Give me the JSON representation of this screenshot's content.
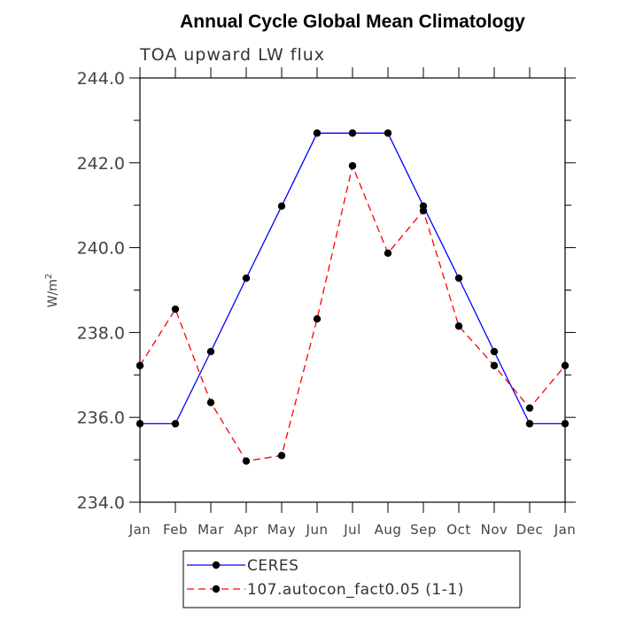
{
  "chart_data": {
    "type": "line",
    "title": "Annual Cycle Global Mean Climatology",
    "subtitle": "TOA upward LW flux",
    "ylabel_base": "W/m",
    "ylabel_sup": "2",
    "categories": [
      "Jan",
      "Feb",
      "Mar",
      "Apr",
      "May",
      "Jun",
      "Jul",
      "Aug",
      "Sep",
      "Oct",
      "Nov",
      "Dec",
      "Jan"
    ],
    "ylim": [
      234.0,
      244.0
    ],
    "yticks": [
      234.0,
      236.0,
      238.0,
      240.0,
      242.0,
      244.0
    ],
    "ytick_labels": [
      "234.0",
      "236.0",
      "238.0",
      "240.0",
      "242.0",
      "244.0"
    ],
    "series": [
      {
        "name": "CERES",
        "color": "#0000ff",
        "dash": "solid",
        "values": [
          235.85,
          235.85,
          237.55,
          239.28,
          240.98,
          242.7,
          242.7,
          242.7,
          240.98,
          239.28,
          237.55,
          235.85,
          235.85
        ]
      },
      {
        "name": "107.autocon_fact0.05 (1-1)",
        "color": "#ff0000",
        "dash": "dashed",
        "values": [
          237.22,
          238.55,
          236.35,
          234.97,
          235.1,
          238.32,
          241.93,
          239.87,
          240.87,
          238.15,
          237.22,
          236.22,
          237.22
        ]
      }
    ],
    "grid": false,
    "legend_position": "bottom"
  }
}
